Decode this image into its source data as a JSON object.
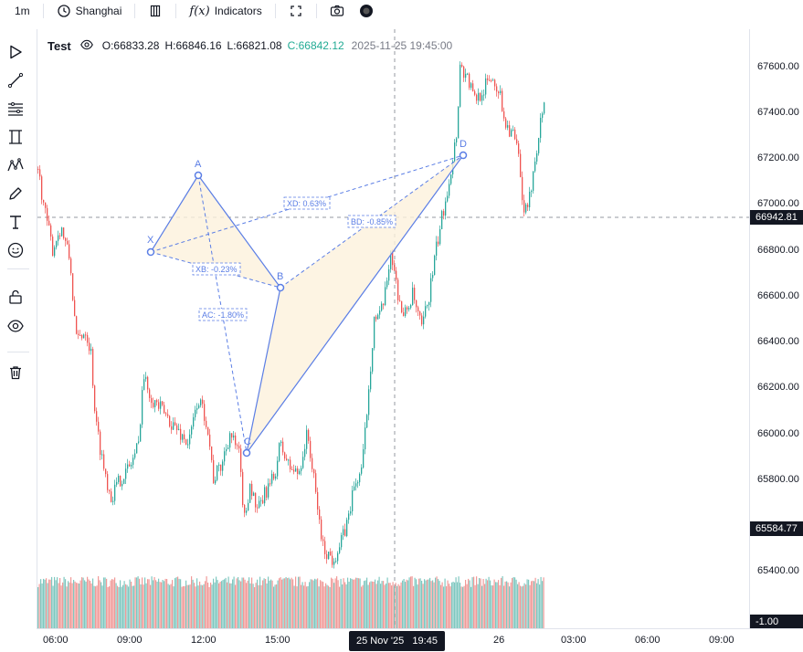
{
  "toolbar": {
    "interval": "1m",
    "timezone": "Shanghai",
    "indicators_label": "Indicators",
    "indicators_symbol": "f(x)"
  },
  "legend": {
    "symbol": "Test",
    "open": "O:66833.28",
    "high": "H:66846.16",
    "low": "L:66821.08",
    "close": "C:66842.12",
    "datetime": "2025-11-25 19:45:00"
  },
  "price_axis": {
    "labels": [
      "67600.00",
      "67400.00",
      "67200.00",
      "67000.00",
      "66800.00",
      "66600.00",
      "66400.00",
      "66200.00",
      "66000.00",
      "65800.00",
      "65400.00"
    ],
    "crosshair_price": "66942.81",
    "low_price": "65584.77",
    "volume_value": "-1.00"
  },
  "time_axis": {
    "labels": [
      "06:00",
      "09:00",
      "12:00",
      "15:00",
      "26",
      "03:00",
      "06:00",
      "09:00"
    ],
    "crosshair_time": "25 Nov '25   19:45"
  },
  "pattern": {
    "points": [
      "X",
      "A",
      "B",
      "C",
      "D"
    ],
    "ratios": {
      "XD": "XD: 0.63%",
      "XB": "XB: -0.23%",
      "AC": "AC: -1.80%",
      "BD": "BD: -0.85%"
    }
  },
  "colors": {
    "up": "#26a69a",
    "down": "#ef5350",
    "pattern": "#5b7ee5",
    "pattern_fill": "#fdf1dc",
    "close_text": "#22ab94"
  },
  "icons": {
    "left_toolbar": [
      "cursor-icon",
      "trendline-icon",
      "fib-icon",
      "channel-icon",
      "pattern-icon",
      "brush-icon",
      "text-icon",
      "emoji-icon",
      "lock-icon",
      "eye-icon",
      "trash-icon"
    ]
  }
}
